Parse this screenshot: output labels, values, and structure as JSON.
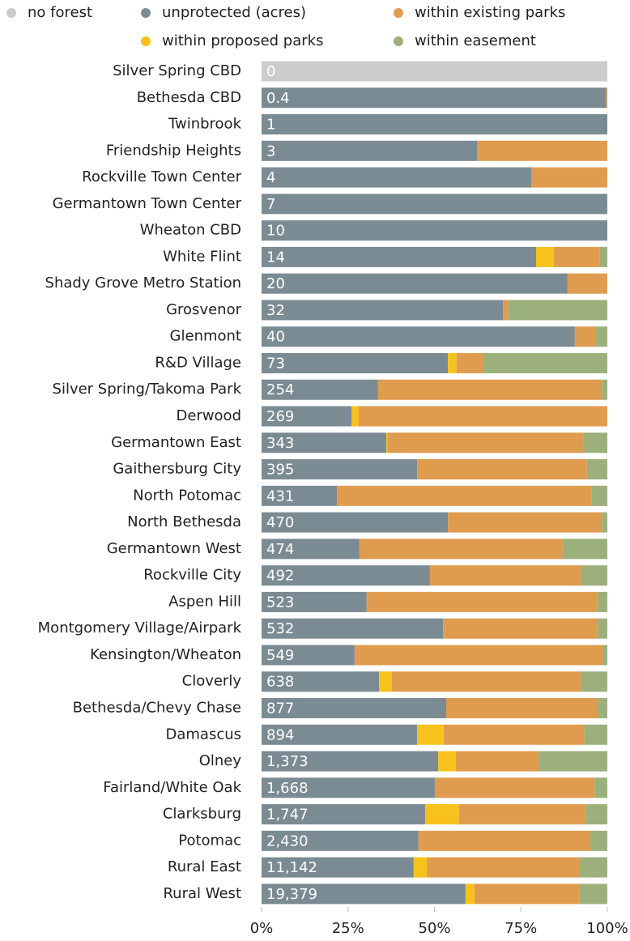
{
  "chart_data": {
    "type": "stacked_bar_horizontal",
    "categories": [
      "Silver Spring CBD",
      "Bethesda CBD",
      "Twinbrook",
      "Friendship Heights",
      "Rockville Town Center",
      "Germantown Town Center",
      "Wheaton CBD",
      "White Flint",
      "Shady Grove Metro Station",
      "Grosvenor",
      "Glenmont",
      "R&D Village",
      "Silver Spring/Takoma Park",
      "Derwood",
      "Germantown East",
      "Gaithersburg City",
      "North Potomac",
      "North Bethesda",
      "Germantown West",
      "Rockville City",
      "Aspen Hill",
      "Montgomery Village/Airpark",
      "Kensington/Wheaton",
      "Cloverly",
      "Bethesda/Chevy Chase",
      "Damascus",
      "Olney",
      "Fairland/White Oak",
      "Clarksburg",
      "Potomac",
      "Rural East",
      "Rural West"
    ],
    "series": [
      {
        "name": "no forest",
        "color": "#cccccc",
        "values": [
          100,
          0,
          0,
          0,
          0,
          0,
          0,
          0,
          0,
          0,
          0,
          0,
          0,
          0,
          0,
          0,
          0,
          0,
          0,
          0,
          0,
          0,
          0,
          0,
          0,
          0,
          0,
          0,
          0,
          0,
          0,
          0
        ]
      },
      {
        "name": "unprotected (acres)",
        "color": "#7b8b93",
        "values": [
          0,
          99.7,
          100,
          62.3,
          78,
          100,
          100,
          79.4,
          88.5,
          69.8,
          90.6,
          53.9,
          33.7,
          26,
          36.1,
          45,
          21.8,
          53.9,
          28.3,
          48.7,
          30.4,
          52.5,
          26.9,
          34,
          53.4,
          45,
          51.1,
          50.1,
          47.3,
          45.4,
          44,
          59
        ]
      },
      {
        "name": "within existing parks",
        "color": "#e09c4e",
        "values": [
          0,
          0.3,
          0,
          37.7,
          22,
          0,
          0,
          13.2,
          11.5,
          1.6,
          5.9,
          7.8,
          64.7,
          71.9,
          56.6,
          49.1,
          73.7,
          44.5,
          58.8,
          43.8,
          66.6,
          44.5,
          71.7,
          54.8,
          43.8,
          40.7,
          23.9,
          46.2,
          36.6,
          49.7,
          44,
          30.4
        ]
      },
      {
        "name": "within proposed parks",
        "color": "#f7c21b",
        "values": [
          0,
          0,
          0,
          0,
          0,
          0,
          0,
          5.1,
          0,
          0,
          0,
          2.5,
          0,
          2.1,
          0.3,
          0,
          0,
          0,
          0,
          0,
          0,
          0,
          0,
          3.7,
          0,
          7.7,
          5.1,
          0,
          9.8,
          0,
          3.8,
          2.6
        ]
      },
      {
        "name": "within easement",
        "color": "#9bb07b",
        "values": [
          0,
          0,
          0,
          0,
          0,
          0,
          0,
          2.3,
          0,
          28.6,
          3.5,
          35.8,
          1.6,
          0,
          7,
          5.9,
          4.5,
          1.6,
          12.9,
          7.5,
          3,
          3,
          1.4,
          7.5,
          2.8,
          6.6,
          19.9,
          3.7,
          6.3,
          4.9,
          8.2,
          8
        ]
      }
    ],
    "bar_labels": [
      0,
      0.4,
      1,
      3,
      4,
      7,
      10,
      14,
      20,
      32,
      40,
      73,
      254,
      269,
      343,
      395,
      431,
      470,
      474,
      492,
      523,
      532,
      549,
      638,
      877,
      894,
      {
        "value": 1373,
        "label": "1,373"
      },
      {
        "value": 1668,
        "label": "1,668"
      },
      {
        "value": 1747,
        "label": "1,747"
      },
      {
        "value": 2430,
        "label": "2,430"
      },
      {
        "value": 11142,
        "label": "11,142"
      },
      {
        "value": 19379,
        "label": "19,379"
      }
    ],
    "xlim": [
      0,
      100
    ],
    "xticks": [
      {
        "value": 0,
        "label": "0%"
      },
      {
        "value": 25,
        "label": "25%"
      },
      {
        "value": 50,
        "label": "50%"
      },
      {
        "value": 75,
        "label": "75%"
      },
      {
        "value": 100,
        "label": "100%"
      }
    ]
  }
}
